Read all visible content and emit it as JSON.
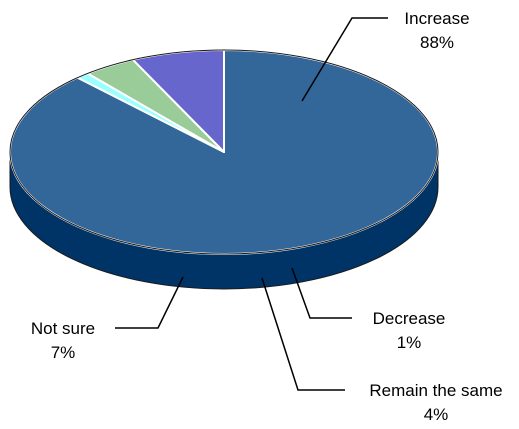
{
  "chart_data": {
    "type": "pie",
    "style": "3d",
    "title": "",
    "slices": [
      {
        "label": "Increase",
        "value_label": "88%",
        "value": 88,
        "color": "#336699",
        "side_color": "#003366"
      },
      {
        "label": "Decrease",
        "value_label": "1%",
        "value": 1,
        "color": "#99FFFF",
        "side_color": "#33CCCC"
      },
      {
        "label": "Remain the same",
        "value_label": "4%",
        "value": 4,
        "color": "#99CC99",
        "side_color": "#006633"
      },
      {
        "label": "Not sure",
        "value_label": "7%",
        "value": 7,
        "color": "#6666CC",
        "side_color": "#333399"
      }
    ],
    "legend": "none",
    "data_labels": "outside-with-leader-lines"
  }
}
